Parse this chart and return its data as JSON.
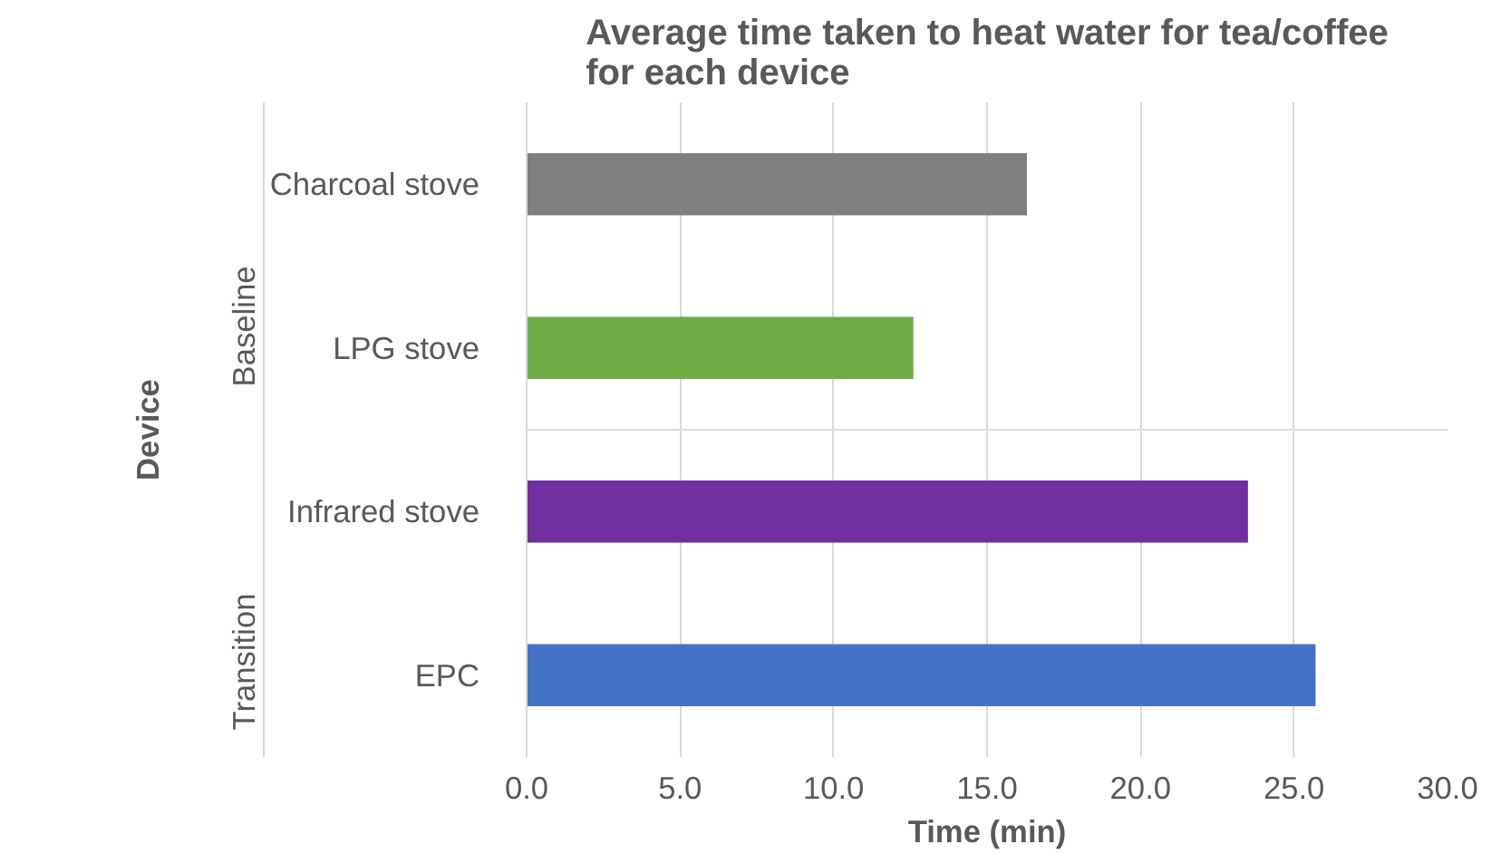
{
  "chart_data": {
    "type": "bar",
    "orientation": "horizontal",
    "title": "Average time taken to heat water for tea/coffee for each device",
    "xlabel": "Time (min)",
    "ylabel": "Device",
    "categories": [
      "Charcoal stove",
      "LPG stove",
      "Infrared stove",
      "EPC"
    ],
    "values": [
      16.3,
      12.6,
      23.5,
      25.7
    ],
    "colors": [
      "#7f7f7f",
      "#70ad47",
      "#7030a0",
      "#4472c4"
    ],
    "annotations": [
      "Baseline",
      "Transition"
    ],
    "xlim": [
      0,
      30
    ],
    "xticks": [
      {
        "value": 0,
        "label": "0.0"
      },
      {
        "value": 5,
        "label": "5.0"
      },
      {
        "value": 10,
        "label": "10.0"
      },
      {
        "value": 15,
        "label": "15.0"
      },
      {
        "value": 20,
        "label": "20.0"
      },
      {
        "value": 25,
        "label": "25.0"
      },
      {
        "value": 30,
        "label": "30.0"
      }
    ],
    "grid": "x"
  }
}
